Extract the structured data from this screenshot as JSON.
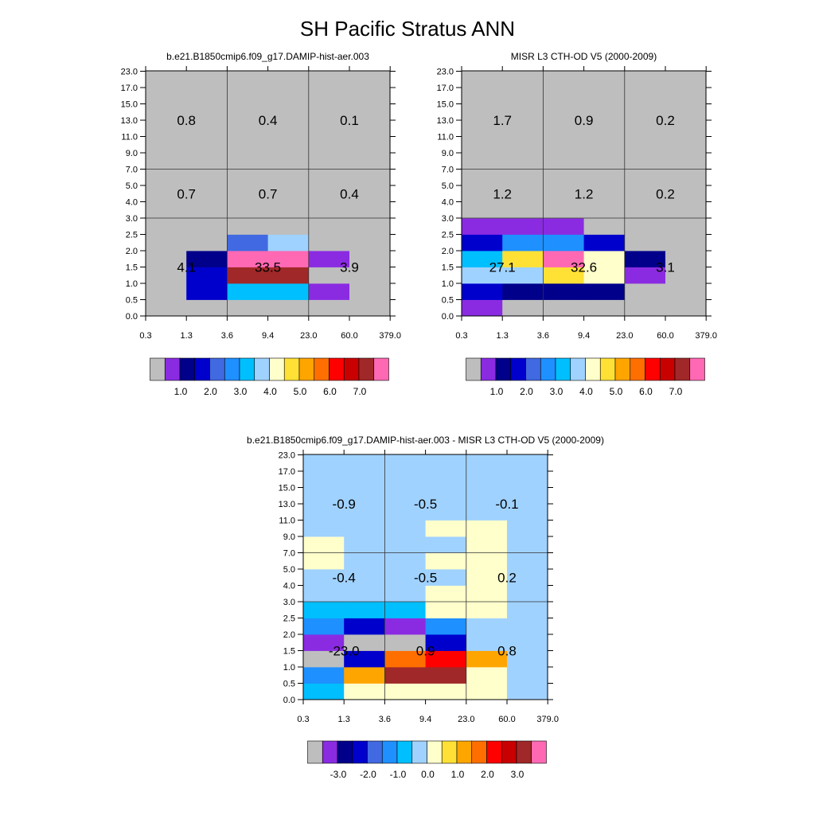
{
  "figure": {
    "title": "SH Pacific Stratus ANN"
  },
  "chart_data": [
    {
      "type": "heatmap",
      "title": "b.e21.B1850cmip6.f09_g17.DAMIP-hist-aer.003",
      "x_ticks": [
        "0.3",
        "1.3",
        "3.6",
        "9.4",
        "23.0",
        "60.0",
        "379.0"
      ],
      "y_ticks": [
        "0.0",
        "0.5",
        "1.0",
        "1.5",
        "2.0",
        "2.5",
        "3.0",
        "4.0",
        "5.0",
        "7.0",
        "9.0",
        "11.0",
        "13.0",
        "15.0",
        "17.0",
        "23.0"
      ],
      "cells": [
        [
          0,
          0,
          0,
          0,
          0,
          0
        ],
        [
          0,
          3,
          6,
          6,
          1,
          0
        ],
        [
          0,
          3,
          14,
          14,
          0,
          0
        ],
        [
          0,
          2,
          15,
          15,
          1,
          0
        ],
        [
          0,
          0,
          4,
          7,
          0,
          0
        ],
        [
          0,
          0,
          0,
          0,
          0,
          0
        ],
        [
          0,
          0,
          0,
          0,
          0,
          0
        ],
        [
          0,
          0,
          0,
          0,
          0,
          0
        ],
        [
          0,
          0,
          0,
          0,
          0,
          0
        ],
        [
          0,
          0,
          0,
          0,
          0,
          0
        ],
        [
          0,
          0,
          0,
          0,
          0,
          0
        ],
        [
          0,
          0,
          0,
          0,
          0,
          0
        ],
        [
          0,
          0,
          0,
          0,
          0,
          0
        ],
        [
          0,
          0,
          0,
          0,
          0,
          0
        ],
        [
          0,
          0,
          0,
          0,
          0,
          0
        ]
      ],
      "group_values": [
        [
          "4.1",
          "33.5",
          "3.9"
        ],
        [
          "0.7",
          "0.7",
          "0.4"
        ],
        [
          "0.8",
          "0.4",
          "0.1"
        ]
      ],
      "colorbar_labels": [
        "1.0",
        "2.0",
        "3.0",
        "4.0",
        "5.0",
        "6.0",
        "7.0"
      ]
    },
    {
      "type": "heatmap",
      "title": "MISR L3 CTH-OD V5 (2000-2009)",
      "x_ticks": [
        "0.3",
        "1.3",
        "3.6",
        "9.4",
        "23.0",
        "60.0",
        "379.0"
      ],
      "y_ticks": [
        "0.0",
        "0.5",
        "1.0",
        "1.5",
        "2.0",
        "2.5",
        "3.0",
        "4.0",
        "5.0",
        "7.0",
        "9.0",
        "11.0",
        "13.0",
        "15.0",
        "17.0",
        "23.0"
      ],
      "cells": [
        [
          1,
          0,
          0,
          0,
          0,
          0
        ],
        [
          3,
          2,
          2,
          2,
          0,
          0
        ],
        [
          7,
          7,
          9,
          8,
          1,
          0
        ],
        [
          6,
          9,
          15,
          8,
          2,
          0
        ],
        [
          3,
          5,
          5,
          3,
          0,
          0
        ],
        [
          1,
          1,
          1,
          0,
          0,
          0
        ],
        [
          0,
          0,
          0,
          0,
          0,
          0
        ],
        [
          0,
          0,
          0,
          0,
          0,
          0
        ],
        [
          0,
          0,
          0,
          0,
          0,
          0
        ],
        [
          0,
          0,
          0,
          0,
          0,
          0
        ],
        [
          0,
          0,
          0,
          0,
          0,
          0
        ],
        [
          0,
          0,
          0,
          0,
          0,
          0
        ],
        [
          0,
          0,
          0,
          0,
          0,
          0
        ],
        [
          0,
          0,
          0,
          0,
          0,
          0
        ],
        [
          0,
          0,
          0,
          0,
          0,
          0
        ]
      ],
      "group_values": [
        [
          "27.1",
          "32.6",
          "3.1"
        ],
        [
          "1.2",
          "1.2",
          "0.2"
        ],
        [
          "1.7",
          "0.9",
          "0.2"
        ]
      ],
      "colorbar_labels": [
        "1.0",
        "2.0",
        "3.0",
        "4.0",
        "5.0",
        "6.0",
        "7.0"
      ]
    },
    {
      "type": "heatmap",
      "title": "b.e21.B1850cmip6.f09_g17.DAMIP-hist-aer.003 - MISR L3 CTH-OD V5 (2000-2009)",
      "x_ticks": [
        "0.3",
        "1.3",
        "3.6",
        "9.4",
        "23.0",
        "60.0",
        "379.0"
      ],
      "y_ticks": [
        "0.0",
        "0.5",
        "1.0",
        "1.5",
        "2.0",
        "2.5",
        "3.0",
        "4.0",
        "5.0",
        "7.0",
        "9.0",
        "11.0",
        "13.0",
        "15.0",
        "17.0",
        "23.0"
      ],
      "cells": [
        [
          6,
          8,
          8,
          8,
          8,
          7
        ],
        [
          5,
          10,
          14,
          14,
          8,
          7
        ],
        [
          0,
          3,
          11,
          12,
          10,
          7
        ],
        [
          1,
          0,
          0,
          3,
          7,
          7
        ],
        [
          5,
          3,
          1,
          5,
          7,
          7
        ],
        [
          6,
          6,
          6,
          8,
          8,
          7
        ],
        [
          7,
          7,
          7,
          8,
          8,
          7
        ],
        [
          7,
          7,
          7,
          7,
          8,
          7
        ],
        [
          8,
          7,
          7,
          8,
          8,
          7
        ],
        [
          8,
          7,
          7,
          7,
          8,
          7
        ],
        [
          7,
          7,
          7,
          8,
          8,
          7
        ],
        [
          7,
          7,
          7,
          7,
          7,
          7
        ],
        [
          7,
          7,
          7,
          7,
          7,
          7
        ],
        [
          7,
          7,
          7,
          7,
          7,
          7
        ],
        [
          7,
          7,
          7,
          7,
          7,
          7
        ]
      ],
      "group_values": [
        [
          "-23.0",
          "0.9",
          "0.8"
        ],
        [
          "-0.4",
          "-0.5",
          "0.2"
        ],
        [
          "-0.9",
          "-0.5",
          "-0.1"
        ]
      ],
      "colorbar_labels": [
        "-3.0",
        "-2.0",
        "-1.0",
        "0.0",
        "1.0",
        "2.0",
        "3.0"
      ]
    }
  ],
  "palette": [
    "#bebebe",
    "#8a2be2",
    "#00008b",
    "#0000cd",
    "#4169e1",
    "#1e90ff",
    "#00bfff",
    "#a0d2ff",
    "#ffffcc",
    "#ffe135",
    "#ffa500",
    "#ff6f00",
    "#ff0000",
    "#c80000",
    "#a02828",
    "#ff69b4"
  ]
}
